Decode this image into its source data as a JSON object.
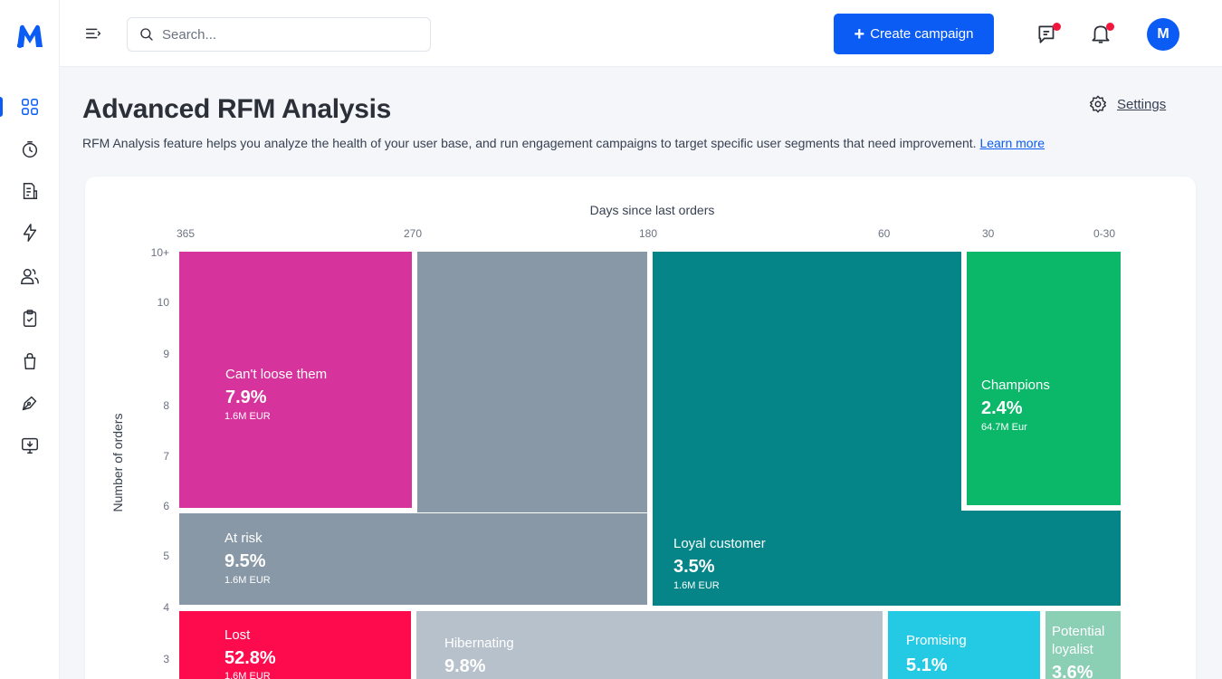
{
  "app": {
    "logo_letter": "M"
  },
  "rail": {
    "items": [
      {
        "name": "dashboard-icon"
      },
      {
        "name": "timer-icon"
      },
      {
        "name": "reports-icon"
      },
      {
        "name": "lightning-icon"
      },
      {
        "name": "users-icon"
      },
      {
        "name": "clipboard-check-icon"
      },
      {
        "name": "shopping-bag-icon"
      },
      {
        "name": "pen-tool-icon"
      },
      {
        "name": "download-monitor-icon"
      }
    ]
  },
  "topbar": {
    "search_placeholder": "Search...",
    "create_label": "Create campaign",
    "avatar_initial": "M"
  },
  "header": {
    "title": "Advanced RFM Analysis",
    "settings_label": "Settings",
    "description": "RFM Analysis feature helps you analyze the health of your user base, and run engagement campaigns to target specific user segments that need improvement.",
    "learn_more": "Learn more"
  },
  "colors": {
    "accent": "#0a5cf5",
    "notification": "#f0163c",
    "cant_lose": "#d6339c",
    "at_risk": "#8898a6",
    "loyal": "#058587",
    "champions": "#0bb86a",
    "lost": "#fe0b4e",
    "hibernating": "#b7c1cc",
    "promising": "#24cae4",
    "potential": "#8bcfb5"
  },
  "chart_data": {
    "type": "treemap",
    "x_title": "Days since last orders",
    "y_title": "Number of orders",
    "x_ticks": [
      "365",
      "270",
      "180",
      "60",
      "30",
      "0-30"
    ],
    "y_ticks": [
      "10+",
      "10",
      "9",
      "8",
      "7",
      "6",
      "5",
      "4",
      "3"
    ],
    "segments": [
      {
        "name": "Can't loose them",
        "percent": "7.9%",
        "amount": "1.6M EUR"
      },
      {
        "name": "At risk",
        "percent": "9.5%",
        "amount": "1.6M EUR"
      },
      {
        "name": "Loyal customer",
        "percent": "3.5%",
        "amount": "1.6M EUR"
      },
      {
        "name": "Champions",
        "percent": "2.4%",
        "amount": "64.7M Eur"
      },
      {
        "name": "Lost",
        "percent": "52.8%",
        "amount": "1.6M EUR"
      },
      {
        "name": "Hibernating",
        "percent": "9.8%",
        "amount": ""
      },
      {
        "name": "Promising",
        "percent": "5.1%",
        "amount": ""
      },
      {
        "name": "Potential loyalist",
        "percent": "3.6%",
        "amount": ""
      }
    ]
  }
}
